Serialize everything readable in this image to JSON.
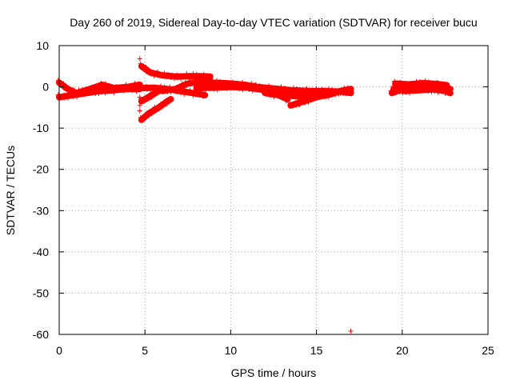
{
  "chart_data": {
    "type": "scatter",
    "title": "Day 260 of 2019, Sidereal Day-to-day VTEC variation (SDTVAR) for receiver bucu",
    "xlabel": "GPS time / hours",
    "ylabel": "SDTVAR / TECUs",
    "xlim": [
      0,
      25
    ],
    "ylim": [
      -60,
      10
    ],
    "xticks": [
      0,
      5,
      10,
      15,
      20,
      25
    ],
    "yticks": [
      10,
      0,
      -10,
      -20,
      -30,
      -40,
      -50,
      -60
    ],
    "grid": true,
    "marker": "+",
    "series": [
      {
        "name": "SDTVAR",
        "color": "#ff0000",
        "tracks": [
          [
            [
              0,
              1
            ],
            [
              0.5,
              -0.5
            ],
            [
              1.0,
              -1.5
            ],
            [
              1.8,
              -0.5
            ],
            [
              2.5,
              0.5
            ],
            [
              3.2,
              -0.3
            ],
            [
              4.0,
              0.0
            ],
            [
              4.7,
              0.5
            ]
          ],
          [
            [
              0,
              -2.5
            ],
            [
              0.8,
              -2.0
            ],
            [
              1.6,
              -1.5
            ],
            [
              2.4,
              -1.0
            ],
            [
              3.2,
              -0.8
            ],
            [
              4.0,
              -0.5
            ],
            [
              4.7,
              -0.5
            ]
          ],
          [
            [
              4.8,
              5.0
            ],
            [
              5.3,
              3.5
            ],
            [
              6.0,
              2.8
            ],
            [
              6.8,
              2.5
            ],
            [
              7.6,
              2.6
            ],
            [
              8.3,
              2.6
            ],
            [
              8.8,
              2.5
            ]
          ],
          [
            [
              4.8,
              -8.0
            ],
            [
              5.2,
              -6.5
            ],
            [
              5.8,
              -5.0
            ],
            [
              6.3,
              -3.5
            ],
            [
              6.5,
              -3.0
            ]
          ],
          [
            [
              4.8,
              -3.5
            ],
            [
              5.2,
              -2.5
            ],
            [
              5.6,
              -1.5
            ],
            [
              6.0,
              -0.5
            ]
          ],
          [
            [
              4.8,
              -0.3
            ],
            [
              5.5,
              -0.2
            ],
            [
              6.3,
              -0.5
            ],
            [
              7.0,
              -1.0
            ],
            [
              7.8,
              -1.5
            ],
            [
              8.5,
              -2.0
            ]
          ],
          [
            [
              6.0,
              -1.0
            ],
            [
              6.8,
              -0.5
            ],
            [
              7.5,
              0.8
            ],
            [
              8.3,
              1.3
            ],
            [
              9.0,
              1.0
            ],
            [
              10.0,
              0.8
            ],
            [
              10.8,
              0.5
            ],
            [
              11.5,
              0.0
            ],
            [
              12.5,
              -0.4
            ],
            [
              13.5,
              -0.8
            ],
            [
              14.5,
              -1.0
            ],
            [
              15.5,
              -1.0
            ],
            [
              16.5,
              -1.2
            ],
            [
              17.0,
              -1.5
            ]
          ],
          [
            [
              8.0,
              -0.3
            ],
            [
              9.0,
              -0.2
            ],
            [
              10.0,
              0.0
            ],
            [
              11.0,
              -0.2
            ],
            [
              12.0,
              -0.8
            ],
            [
              12.8,
              -2.0
            ],
            [
              13.3,
              -3.0
            ]
          ],
          [
            [
              12.0,
              -1.5
            ],
            [
              12.8,
              -2.0
            ],
            [
              13.6,
              -2.2
            ],
            [
              14.3,
              -2.5
            ],
            [
              15.0,
              -2.0
            ],
            [
              15.8,
              -1.5
            ],
            [
              16.5,
              -1.0
            ],
            [
              17.0,
              -1.2
            ]
          ],
          [
            [
              13.5,
              -4.5
            ],
            [
              14.3,
              -3.5
            ],
            [
              15.0,
              -2.5
            ],
            [
              15.8,
              -1.8
            ],
            [
              16.4,
              -1.0
            ],
            [
              17.0,
              -0.5
            ]
          ],
          [
            [
              19.4,
              -1.5
            ],
            [
              20.0,
              -0.5
            ],
            [
              20.8,
              0.0
            ],
            [
              21.6,
              0.5
            ],
            [
              22.3,
              0.0
            ],
            [
              22.8,
              -0.5
            ]
          ],
          [
            [
              19.5,
              -0.5
            ],
            [
              20.2,
              -1.0
            ],
            [
              21.0,
              -0.8
            ],
            [
              21.8,
              -0.6
            ],
            [
              22.5,
              -1.0
            ],
            [
              22.8,
              -1.5
            ]
          ],
          [
            [
              19.6,
              0.8
            ],
            [
              20.4,
              0.6
            ],
            [
              21.2,
              0.9
            ],
            [
              22.0,
              0.7
            ],
            [
              22.6,
              0.4
            ]
          ]
        ],
        "outliers": [
          [
            4.7,
            6.8
          ],
          [
            4.7,
            -2.5
          ],
          [
            4.7,
            -4.5
          ],
          [
            4.7,
            -5.8
          ],
          [
            17.0,
            -59.2
          ]
        ]
      }
    ]
  }
}
